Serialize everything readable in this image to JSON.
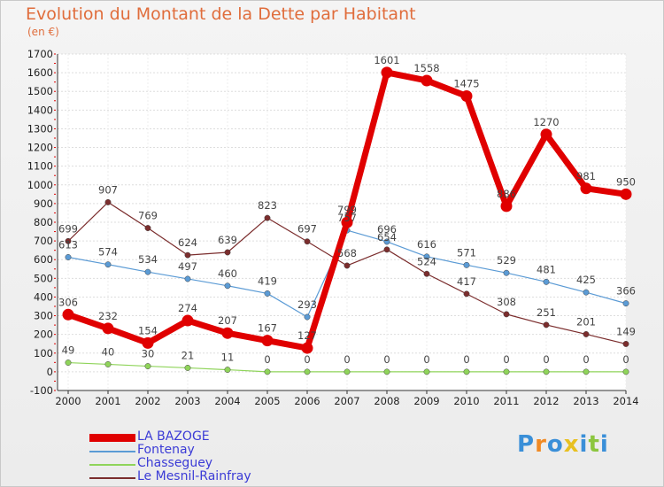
{
  "title": "Evolution du Montant de la Dette par Habitant",
  "unit": "(en €)",
  "logo": {
    "text": "Proxiti",
    "colors": [
      "#3a8fd8",
      "#f08a24",
      "#3a8fd8",
      "#e8c020",
      "#3a8fd8",
      "#8cc63f",
      "#3a8fd8"
    ]
  },
  "chart_data": {
    "type": "line",
    "x": [
      "2000",
      "2001",
      "2002",
      "2003",
      "2004",
      "2005",
      "2006",
      "2007",
      "2008",
      "2009",
      "2010",
      "2011",
      "2012",
      "2013",
      "2014"
    ],
    "ylim": [
      -100,
      1700
    ],
    "yticks": [
      -100,
      0,
      100,
      200,
      300,
      400,
      500,
      600,
      700,
      800,
      900,
      1000,
      1100,
      1200,
      1300,
      1400,
      1500,
      1600,
      1700
    ],
    "grid": true,
    "legend_position": "bottom-left",
    "series": [
      {
        "name": "LA BAZOGE",
        "color": "#e00000",
        "values": [
          306,
          232,
          154,
          274,
          207,
          167,
          127,
          799,
          1601,
          1558,
          1475,
          886,
          1270,
          981,
          950
        ],
        "labels": [
          "306",
          "232",
          "154",
          "274",
          "207",
          "167",
          "127",
          "799",
          "1601",
          "1558",
          "1475",
          "886",
          "1270",
          "981",
          "950"
        ]
      },
      {
        "name": "Fontenay",
        "color": "#5b9bd5",
        "values": [
          613,
          574,
          534,
          497,
          460,
          419,
          293,
          757,
          696,
          616,
          571,
          529,
          481,
          425,
          366
        ],
        "labels": [
          "613",
          "574",
          "534",
          "497",
          "460",
          "419",
          "293",
          "757",
          "696",
          "616",
          "571",
          "529",
          "481",
          "425",
          "366"
        ]
      },
      {
        "name": "Chasseguey",
        "color": "#8fd45a",
        "values": [
          49,
          40,
          30,
          21,
          11,
          0,
          0,
          0,
          0,
          0,
          0,
          0,
          0,
          0,
          0
        ],
        "labels": [
          "49",
          "40",
          "30",
          "21",
          "11",
          "0",
          "0",
          "0",
          "0",
          "0",
          "0",
          "0",
          "0",
          "0",
          "0"
        ]
      },
      {
        "name": "Le Mesnil-Rainfray",
        "color": "#7b2d2d",
        "values": [
          699,
          907,
          769,
          624,
          639,
          823,
          697,
          568,
          654,
          524,
          417,
          308,
          251,
          201,
          149
        ],
        "labels": [
          "699",
          "907",
          "769",
          "624",
          "639",
          "823",
          "697",
          "568",
          "654",
          "524",
          "417",
          "308",
          "251",
          "201",
          "149"
        ]
      }
    ]
  }
}
